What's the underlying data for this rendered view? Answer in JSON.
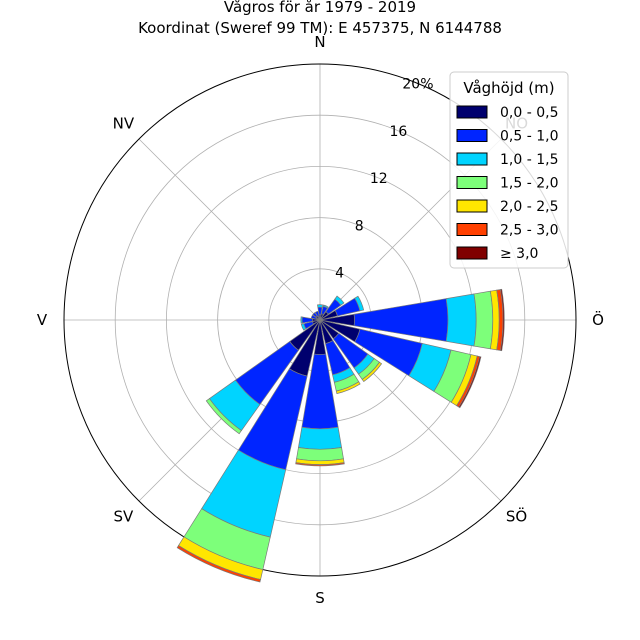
{
  "chart_data": {
    "type": "windrose",
    "title": "Vågros för år 1979 - 2019",
    "subtitle": "Koordinat (Sweref 99 TM): E 457375, N 6144788",
    "directions": [
      "N",
      "NO",
      "Ö",
      "SÖ",
      "S",
      "SV",
      "V",
      "NV"
    ],
    "radial_ticks": [
      "4",
      "8",
      "12",
      "16",
      "20%"
    ],
    "rmax": 20,
    "legend": {
      "title": "Våghöjd (m)",
      "placement": "top-right",
      "labels": [
        "0,0 - 0,5",
        "0,5 - 1,0",
        "1,0 - 1,5",
        "1,5 - 2,0",
        "2,0 - 2,5",
        "2,5 - 3,0",
        "≥ 3,0"
      ],
      "colors": [
        "#00006e",
        "#0025ff",
        "#00d4ff",
        "#7dff7a",
        "#ffe600",
        "#ff4000",
        "#800000"
      ]
    },
    "sectors": [
      {
        "angle": 0,
        "stack": [
          0.4,
          0.6,
          0.2
        ]
      },
      {
        "angle": 22.5,
        "stack": [
          0.5,
          0.6,
          0.1
        ]
      },
      {
        "angle": 45,
        "stack": [
          0.8,
          1.2,
          0.3
        ]
      },
      {
        "angle": 67.5,
        "stack": [
          1.4,
          1.8,
          0.3
        ]
      },
      {
        "angle": 90,
        "stack": [
          2.7,
          7.3,
          2.2,
          1.3,
          0.5,
          0.3,
          0.1
        ]
      },
      {
        "angle": 112.5,
        "stack": [
          3.2,
          5.0,
          2.3,
          1.6,
          0.5,
          0.2,
          0.1
        ]
      },
      {
        "angle": 135,
        "stack": [
          1.8,
          2.8,
          0.6,
          0.5,
          0.2
        ]
      },
      {
        "angle": 157.5,
        "stack": [
          1.9,
          2.5,
          0.6,
          0.7,
          0.2
        ]
      },
      {
        "angle": 180,
        "stack": [
          2.7,
          5.8,
          1.6,
          0.9,
          0.3,
          0.1
        ]
      },
      {
        "angle": 202.5,
        "stack": [
          4.5,
          7.5,
          5.4,
          2.6,
          0.8,
          0.2
        ]
      },
      {
        "angle": 225,
        "stack": [
          2.9,
          5.2,
          2.5,
          0.3
        ]
      },
      {
        "angle": 247.5,
        "stack": [
          0.6,
          0.7,
          0.2
        ]
      },
      {
        "angle": 270,
        "stack": [
          0.6,
          0.8,
          0.1
        ]
      },
      {
        "angle": 292.5,
        "stack": [
          0.3,
          0.4
        ]
      },
      {
        "angle": 315,
        "stack": [
          0.4,
          0.3
        ]
      },
      {
        "angle": 337.5,
        "stack": [
          0.3,
          0.4
        ]
      }
    ]
  }
}
